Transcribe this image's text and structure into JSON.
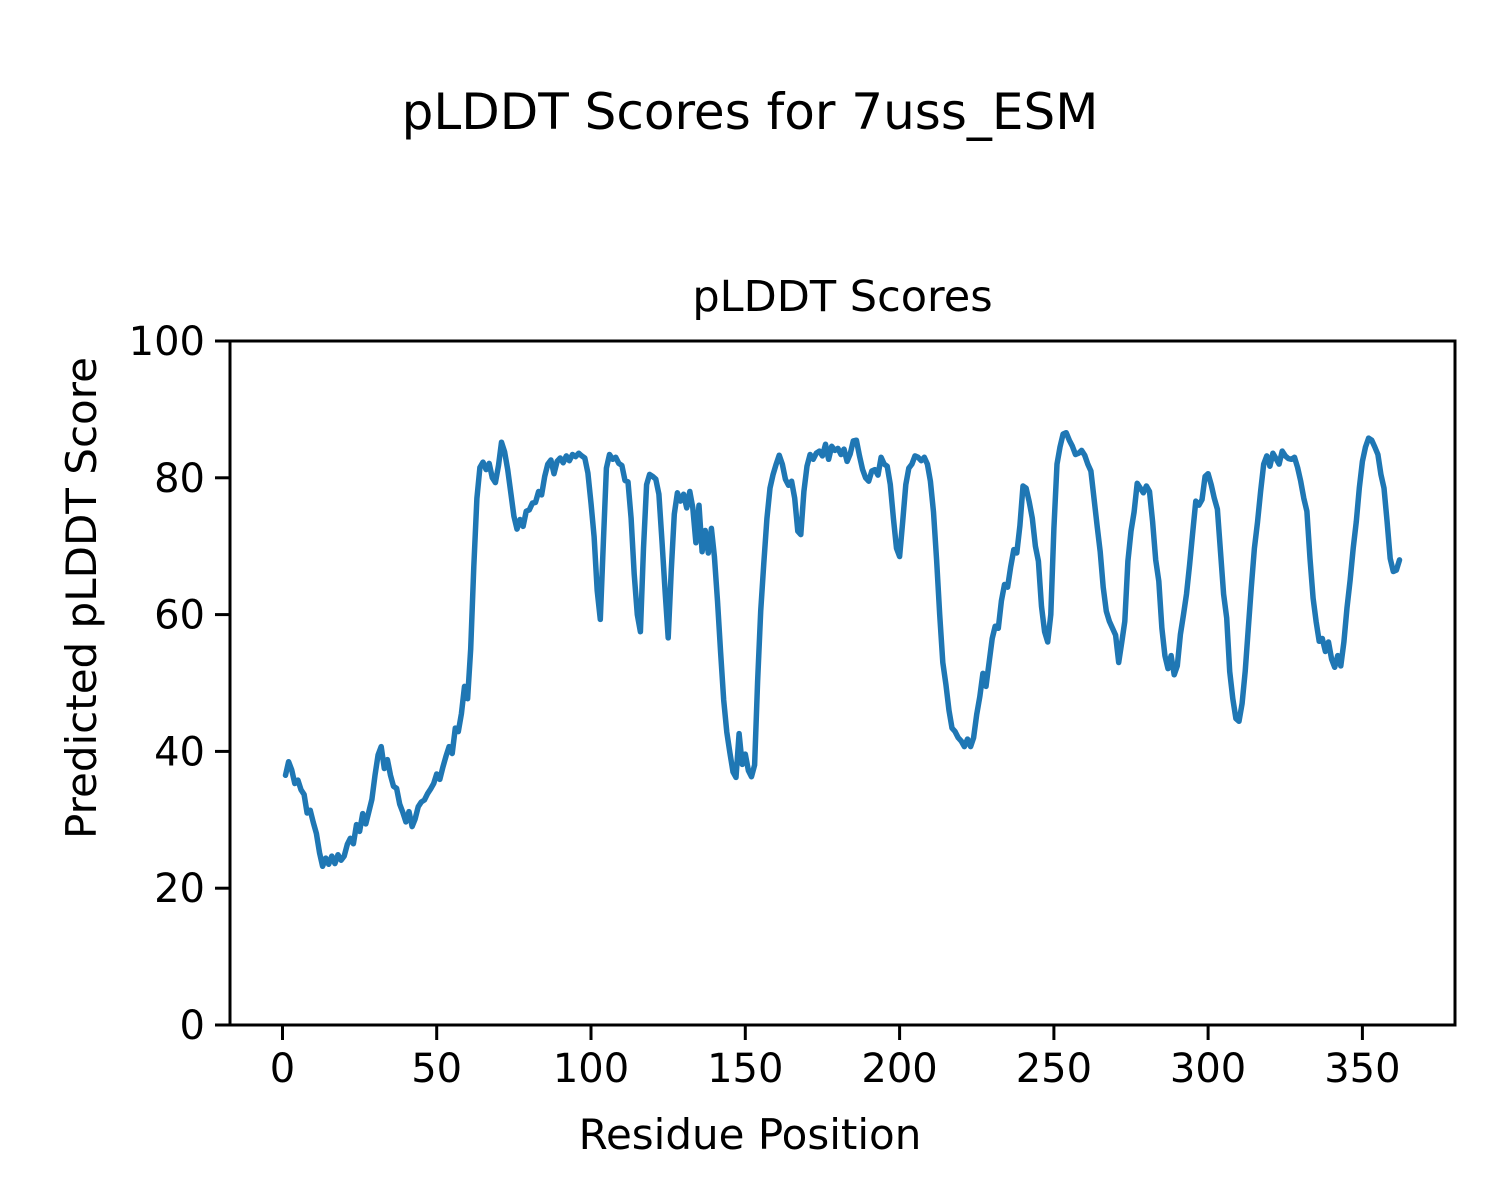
{
  "figure": {
    "suptitle": "pLDDT Scores for 7uss_ESM"
  },
  "chart_data": {
    "type": "line",
    "title": "pLDDT Scores",
    "xlabel": "Residue Position",
    "ylabel": "Predicted pLDDT Score",
    "xlim": [
      -17,
      380
    ],
    "ylim": [
      0,
      100
    ],
    "x_ticks": [
      0,
      50,
      100,
      150,
      200,
      250,
      300,
      350
    ],
    "y_ticks": [
      0,
      20,
      40,
      60,
      80,
      100
    ],
    "grid": false,
    "legend": "none",
    "line_color": "#1f77b4",
    "series": [
      {
        "name": "pLDDT",
        "x_start": 1,
        "x_step": 1,
        "values": [
          36.5,
          38.5,
          37.3,
          35.3,
          35.8,
          34.4,
          33.7,
          31.0,
          31.4,
          29.6,
          28.0,
          25.2,
          23.2,
          24.4,
          23.5,
          24.7,
          23.6,
          24.9,
          24.1,
          24.7,
          26.4,
          27.3,
          26.5,
          29.3,
          28.3,
          30.9,
          29.4,
          31.2,
          33.0,
          36.5,
          39.5,
          40.7,
          37.5,
          38.8,
          36.5,
          34.9,
          34.6,
          32.3,
          31.1,
          29.7,
          31.2,
          29.0,
          30.1,
          31.9,
          32.6,
          32.9,
          33.8,
          34.5,
          35.3,
          36.7,
          35.9,
          37.7,
          39.3,
          40.7,
          39.7,
          43.4,
          42.9,
          45.5,
          49.5,
          47.7,
          55.0,
          67.0,
          77.0,
          81.5,
          82.3,
          81.2,
          82.1,
          80.0,
          79.3,
          81.8,
          85.2,
          83.8,
          81.2,
          77.8,
          74.4,
          72.5,
          73.9,
          72.9,
          75.1,
          75.3,
          76.3,
          76.4,
          78.0,
          77.5,
          80.2,
          82.0,
          82.6,
          80.6,
          82.4,
          82.9,
          82.2,
          83.2,
          82.5,
          83.4,
          83.1,
          83.6,
          83.2,
          82.9,
          80.7,
          76.3,
          71.4,
          63.5,
          59.3,
          70.7,
          81.4,
          83.4,
          82.7,
          83.0,
          82.1,
          81.8,
          79.6,
          79.4,
          74.1,
          65.9,
          60.0,
          57.5,
          69.7,
          79.0,
          80.5,
          80.2,
          79.8,
          77.6,
          70.7,
          63.4,
          56.6,
          66.3,
          74.7,
          77.8,
          76.6,
          77.6,
          75.6,
          78.0,
          75.6,
          70.5,
          76.0,
          69.2,
          72.3,
          69.0,
          72.6,
          68.5,
          62.0,
          54.5,
          47.5,
          42.8,
          39.8,
          37.0,
          36.2,
          42.6,
          38.1,
          39.6,
          37.2,
          36.3,
          38.0,
          50.2,
          60.5,
          67.5,
          74.0,
          78.5,
          80.5,
          82.0,
          83.3,
          82.0,
          79.8,
          78.9,
          79.5,
          77.0,
          72.2,
          71.7,
          78.0,
          81.7,
          83.4,
          82.7,
          83.6,
          83.9,
          83.2,
          84.9,
          82.7,
          84.6,
          84.0,
          84.3,
          83.4,
          84.2,
          82.4,
          83.5,
          85.4,
          85.5,
          83.2,
          81.2,
          80.0,
          79.5,
          81.0,
          81.2,
          80.4,
          83.0,
          82.0,
          81.7,
          79.0,
          74.1,
          69.7,
          68.5,
          73.6,
          79.0,
          81.4,
          82.0,
          83.2,
          83.0,
          82.5,
          83.0,
          82.0,
          79.5,
          75.0,
          68.0,
          60.0,
          53.0,
          49.8,
          46.0,
          43.4,
          42.9,
          42.0,
          41.5,
          40.7,
          41.8,
          40.7,
          42.0,
          45.4,
          48.0,
          51.4,
          49.5,
          53.0,
          56.5,
          58.3,
          58.0,
          62.0,
          64.4,
          64.0,
          67.0,
          69.5,
          69.0,
          73.0,
          78.8,
          78.5,
          76.5,
          74.1,
          70.0,
          67.8,
          61.2,
          57.5,
          56.0,
          60.0,
          72.6,
          82.0,
          84.5,
          86.4,
          86.6,
          85.5,
          84.6,
          83.4,
          83.6,
          84.0,
          83.3,
          82.0,
          81.0,
          77.0,
          73.0,
          69.2,
          64.0,
          60.5,
          59.0,
          58.0,
          57.0,
          53.0,
          56.0,
          59.0,
          67.8,
          72.2,
          75.0,
          79.2,
          78.5,
          77.8,
          78.8,
          78.0,
          73.6,
          68.0,
          64.9,
          58.0,
          54.0,
          52.1,
          54.0,
          51.2,
          52.5,
          57.1,
          60.0,
          63.0,
          67.3,
          72.0,
          76.6,
          76.0,
          76.8,
          80.2,
          80.6,
          79.0,
          77.0,
          75.4,
          69.2,
          63.0,
          59.5,
          51.7,
          47.7,
          44.8,
          44.4,
          47.0,
          51.7,
          58.0,
          64.0,
          69.7,
          73.5,
          78.0,
          82.0,
          83.2,
          81.7,
          83.6,
          82.8,
          82.0,
          83.9,
          83.2,
          82.8,
          82.7,
          83.0,
          81.5,
          79.5,
          77.0,
          75.1,
          68.2,
          62.4,
          59.0,
          56.1,
          56.5,
          54.6,
          56.0,
          53.5,
          52.3,
          54.0,
          52.5,
          56.0,
          61.0,
          65.0,
          69.7,
          73.6,
          78.5,
          82.4,
          84.5,
          85.8,
          85.5,
          84.5,
          83.4,
          80.5,
          78.5,
          73.6,
          68.2,
          66.3,
          66.5,
          68.0
        ]
      }
    ]
  }
}
